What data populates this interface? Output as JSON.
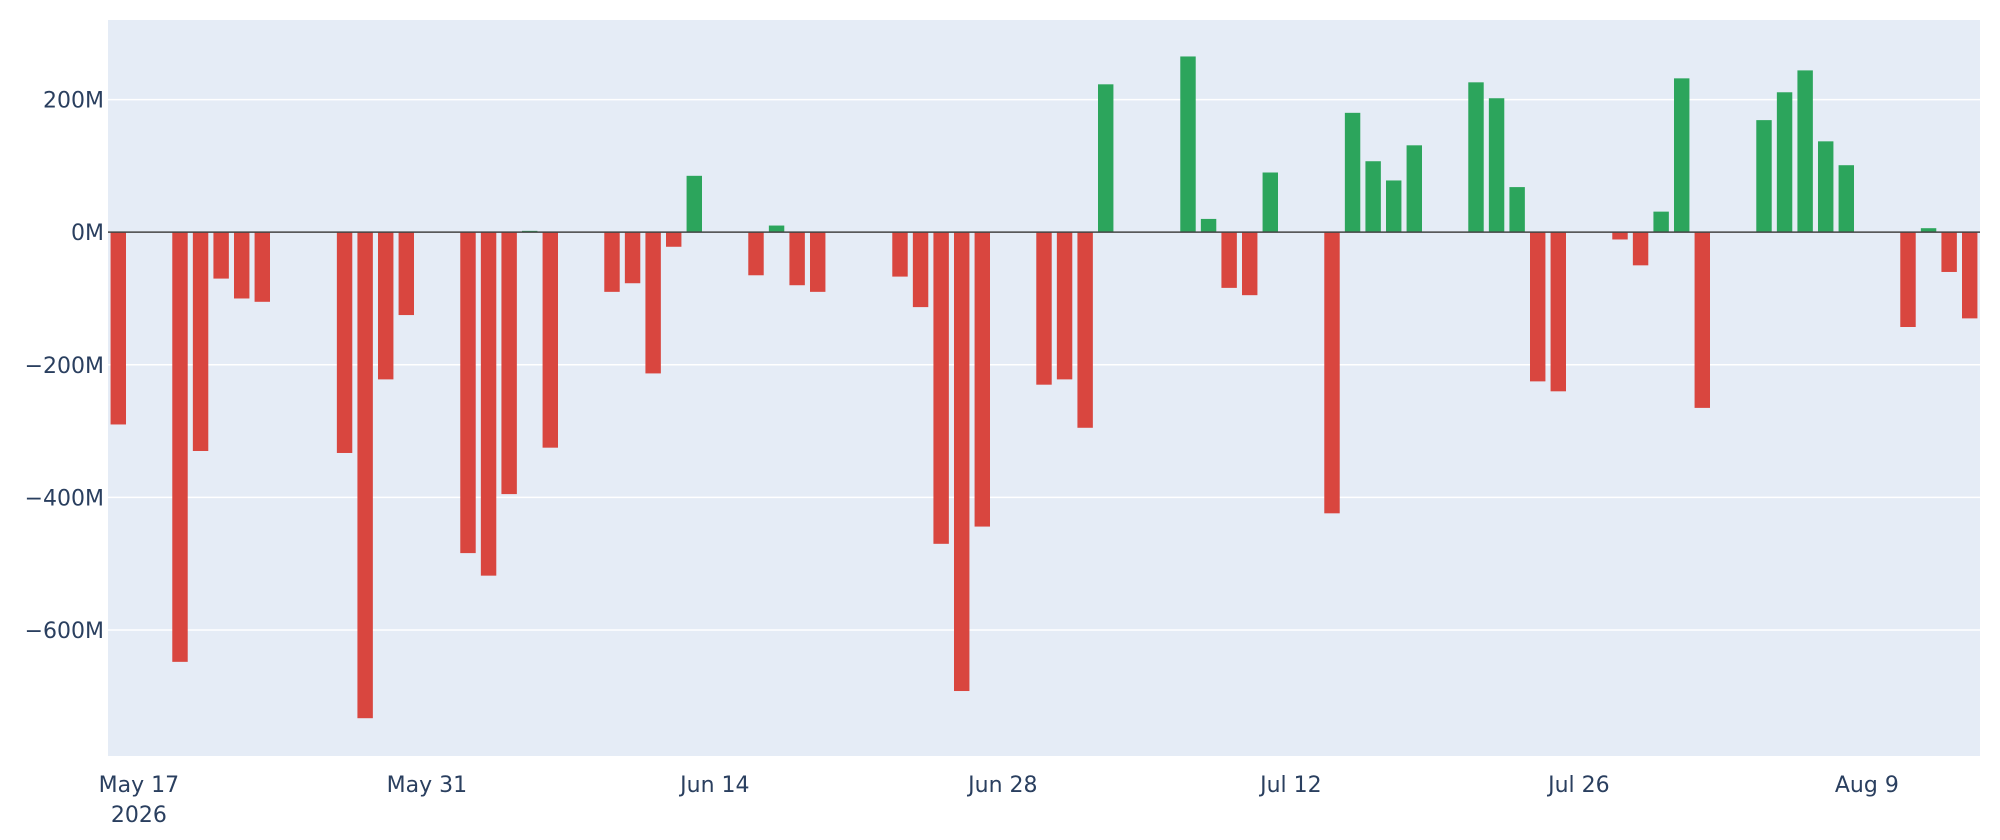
{
  "chart_data": {
    "type": "bar",
    "title": "",
    "xlabel": "",
    "ylabel": "",
    "x_axis": {
      "start": "2026-05-16",
      "end": "2026-08-14"
    },
    "ylim": [
      -790,
      320
    ],
    "yunit": "M",
    "grid": true,
    "colors": {
      "positive": "#2ca55c",
      "negative": "#d9463f",
      "plot_bg": "#e5ecf6",
      "text": "#2a3f5f"
    },
    "x_ticks": [
      {
        "date": "2026-05-17",
        "label": "May 17",
        "sublabel": "2026"
      },
      {
        "date": "2026-05-31",
        "label": "May 31"
      },
      {
        "date": "2026-06-14",
        "label": "Jun 14"
      },
      {
        "date": "2026-06-28",
        "label": "Jun 28"
      },
      {
        "date": "2026-07-12",
        "label": "Jul 12"
      },
      {
        "date": "2026-07-26",
        "label": "Jul 26"
      },
      {
        "date": "2026-08-09",
        "label": "Aug 9"
      }
    ],
    "y_ticks": [
      {
        "value": 200,
        "label": "200M"
      },
      {
        "value": 0,
        "label": "0M"
      },
      {
        "value": -200,
        "label": "−200M"
      },
      {
        "value": -400,
        "label": "−400M"
      },
      {
        "value": -600,
        "label": "−600M"
      }
    ],
    "x": [
      "2026-05-16",
      "2026-05-19",
      "2026-05-20",
      "2026-05-21",
      "2026-05-22",
      "2026-05-23",
      "2026-05-27",
      "2026-05-28",
      "2026-05-29",
      "2026-05-30",
      "2026-06-02",
      "2026-06-03",
      "2026-06-04",
      "2026-06-05",
      "2026-06-06",
      "2026-06-09",
      "2026-06-10",
      "2026-06-11",
      "2026-06-12",
      "2026-06-13",
      "2026-06-16",
      "2026-06-17",
      "2026-06-18",
      "2026-06-19",
      "2026-06-23",
      "2026-06-24",
      "2026-06-25",
      "2026-06-26",
      "2026-06-27",
      "2026-06-30",
      "2026-07-01",
      "2026-07-02",
      "2026-07-03",
      "2026-07-07",
      "2026-07-08",
      "2026-07-09",
      "2026-07-10",
      "2026-07-11",
      "2026-07-14",
      "2026-07-15",
      "2026-07-16",
      "2026-07-17",
      "2026-07-18",
      "2026-07-21",
      "2026-07-22",
      "2026-07-23",
      "2026-07-24",
      "2026-07-25",
      "2026-07-28",
      "2026-07-29",
      "2026-07-30",
      "2026-07-31",
      "2026-08-01",
      "2026-08-04",
      "2026-08-05",
      "2026-08-06",
      "2026-08-07",
      "2026-08-08",
      "2026-08-11",
      "2026-08-12",
      "2026-08-13",
      "2026-08-14"
    ],
    "values": [
      -290,
      -648,
      -330,
      -70,
      -100,
      -105,
      -333,
      -733,
      -222,
      -125,
      -484,
      -518,
      -395,
      2,
      -325,
      -90,
      -77,
      -213,
      -22,
      85,
      -65,
      10,
      -80,
      -90,
      -67,
      -113,
      -470,
      -692,
      -444,
      -230,
      -222,
      -295,
      223,
      265,
      20,
      -84,
      -95,
      90,
      -424,
      180,
      107,
      78,
      131,
      226,
      202,
      68,
      -225,
      -240,
      -11,
      -50,
      31,
      232,
      -265,
      169,
      211,
      244,
      137,
      101,
      -143,
      6,
      -60,
      -130
    ]
  }
}
